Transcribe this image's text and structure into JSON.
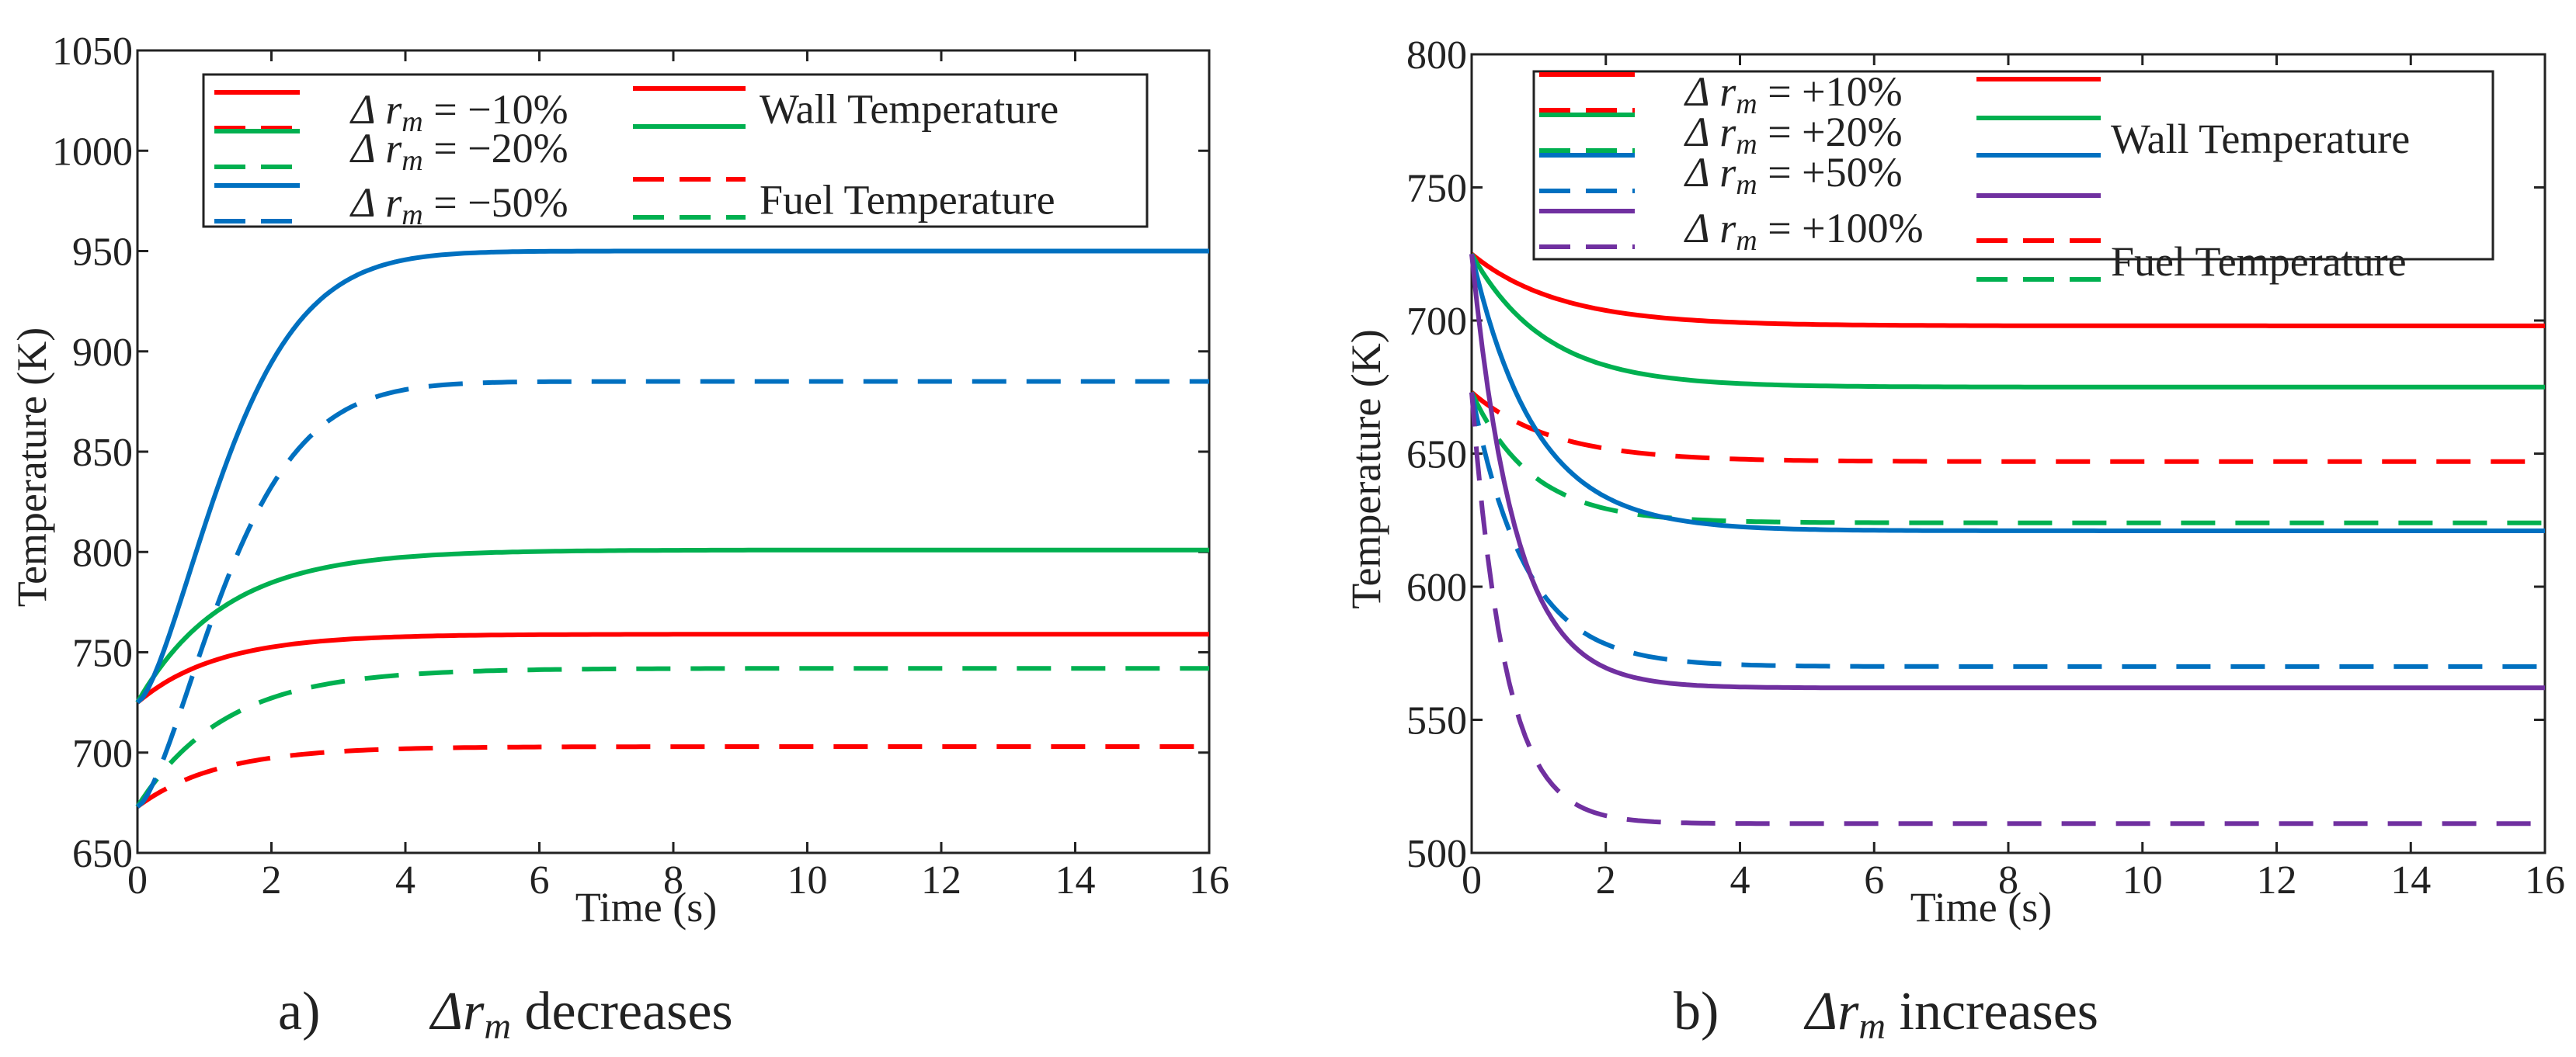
{
  "chart_data": [
    {
      "type": "line",
      "caption": {
        "letter": "a)",
        "text": "Δr",
        "sub": "m",
        "rest": " decreases"
      },
      "xlabel": "Time (s)",
      "ylabel": "Temperature (K)",
      "xlim": [
        0,
        16
      ],
      "ylim": [
        650,
        1050
      ],
      "xticks": [
        0,
        2,
        4,
        6,
        8,
        10,
        12,
        14,
        16
      ],
      "yticks": [
        650,
        700,
        750,
        800,
        850,
        900,
        950,
        1000,
        1050
      ],
      "grid": false,
      "legend": {
        "placement": "top",
        "entries": [
          {
            "label": "Δ r",
            "sub": "m",
            "rest": " = −10%",
            "color": "#ff0000"
          },
          {
            "label": "Δ r",
            "sub": "m",
            "rest": " = −20%",
            "color": "#00b050"
          },
          {
            "label": "Δ r",
            "sub": "m",
            "rest": " = −50%",
            "color": "#0070c0"
          }
        ],
        "style_labels": [
          "Wall Temperature",
          "Fuel Temperature"
        ]
      },
      "series": [
        {
          "color": "#ff0000",
          "style": "solid",
          "start": 725,
          "end": 759,
          "tau": 1.2
        },
        {
          "color": "#ff0000",
          "style": "dashed",
          "start": 673,
          "end": 703,
          "tau": 1.2
        },
        {
          "color": "#00b050",
          "style": "solid",
          "start": 725,
          "end": 801,
          "tau": 1.3
        },
        {
          "color": "#00b050",
          "style": "dashed",
          "start": 673,
          "end": 742,
          "tau": 1.3
        },
        {
          "color": "#0070c0",
          "style": "solid",
          "start": 725,
          "end": 950,
          "tau": 1.6,
          "sigmoid": true
        },
        {
          "color": "#0070c0",
          "style": "dashed",
          "start": 673,
          "end": 885,
          "tau": 1.6,
          "sigmoid": true
        }
      ]
    },
    {
      "type": "line",
      "caption": {
        "letter": "b)",
        "text": "Δr",
        "sub": "m",
        "rest": " increases"
      },
      "xlabel": "Time (s)",
      "ylabel": "Temperature (K)",
      "xlim": [
        0,
        16
      ],
      "ylim": [
        500,
        800
      ],
      "xticks": [
        0,
        2,
        4,
        6,
        8,
        10,
        12,
        14,
        16
      ],
      "yticks": [
        500,
        550,
        600,
        650,
        700,
        750,
        800
      ],
      "grid": false,
      "legend": {
        "placement": "top",
        "entries": [
          {
            "label": "Δ r",
            "sub": "m",
            "rest": " = +10%",
            "color": "#ff0000"
          },
          {
            "label": "Δ r",
            "sub": "m",
            "rest": " = +20%",
            "color": "#00b050"
          },
          {
            "label": "Δ r",
            "sub": "m",
            "rest": " = +50%",
            "color": "#0070c0"
          },
          {
            "label": "Δ r",
            "sub": "m",
            "rest": " = +100%",
            "color": "#7030a0"
          }
        ],
        "style_labels": [
          "Wall Temperature",
          "Fuel Temperature"
        ]
      },
      "series": [
        {
          "color": "#ff0000",
          "style": "solid",
          "start": 725,
          "end": 698,
          "tau": 1.3
        },
        {
          "color": "#ff0000",
          "style": "dashed",
          "start": 673,
          "end": 647,
          "tau": 1.2
        },
        {
          "color": "#00b050",
          "style": "solid",
          "start": 725,
          "end": 675,
          "tau": 1.1
        },
        {
          "color": "#00b050",
          "style": "dashed",
          "start": 673,
          "end": 624,
          "tau": 0.9
        },
        {
          "color": "#0070c0",
          "style": "solid",
          "start": 725,
          "end": 621,
          "tau": 0.95
        },
        {
          "color": "#0070c0",
          "style": "dashed",
          "start": 673,
          "end": 570,
          "tau": 0.8
        },
        {
          "color": "#7030a0",
          "style": "solid",
          "start": 725,
          "end": 562,
          "tau": 0.65
        },
        {
          "color": "#7030a0",
          "style": "dashed",
          "start": 673,
          "end": 511,
          "tau": 0.5
        }
      ]
    }
  ]
}
